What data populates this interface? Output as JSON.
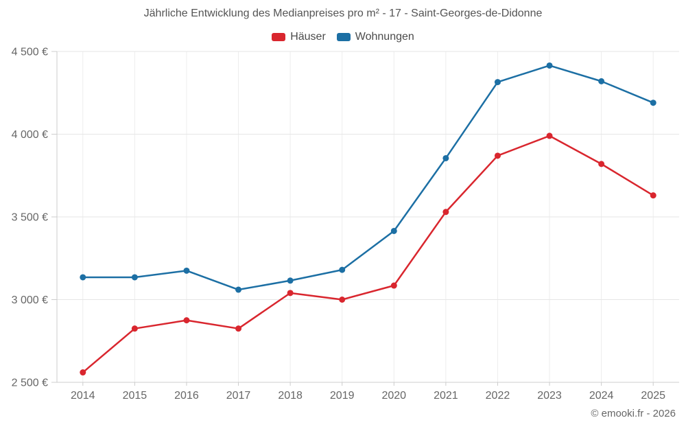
{
  "title": "Jährliche Entwicklung des Medianpreises pro m² - 17 - Saint-Georges-de-Didonne",
  "footer": "© emooki.fr - 2026",
  "legend": [
    {
      "label": "Häuser",
      "color": "#d9262e"
    },
    {
      "label": "Wohnungen",
      "color": "#1c6fa4"
    }
  ],
  "chart_data": {
    "type": "line",
    "title": "Jährliche Entwicklung des Medianpreises pro m² - 17 - Saint-Georges-de-Didonne",
    "categories": [
      "2014",
      "2015",
      "2016",
      "2017",
      "2018",
      "2019",
      "2020",
      "2021",
      "2022",
      "2023",
      "2024",
      "2025"
    ],
    "series": [
      {
        "name": "Häuser",
        "color": "#d9262e",
        "values": [
          2560,
          2825,
          2875,
          2825,
          3040,
          3000,
          3085,
          3530,
          3870,
          3990,
          3820,
          3630
        ]
      },
      {
        "name": "Wohnungen",
        "color": "#1c6fa4",
        "values": [
          3135,
          3135,
          3175,
          3060,
          3115,
          3180,
          3415,
          3855,
          4315,
          4415,
          4320,
          4190
        ]
      }
    ],
    "unit": "€",
    "ylim": [
      2500,
      4500
    ],
    "yticks": [
      2500,
      3000,
      3500,
      4000,
      4500
    ],
    "ytick_labels": [
      "2 500 €",
      "3 000 €",
      "3 500 €",
      "4 000 €",
      "4 500 €"
    ],
    "xlabel": "",
    "ylabel": "",
    "grid": true,
    "legend_position": "top"
  }
}
